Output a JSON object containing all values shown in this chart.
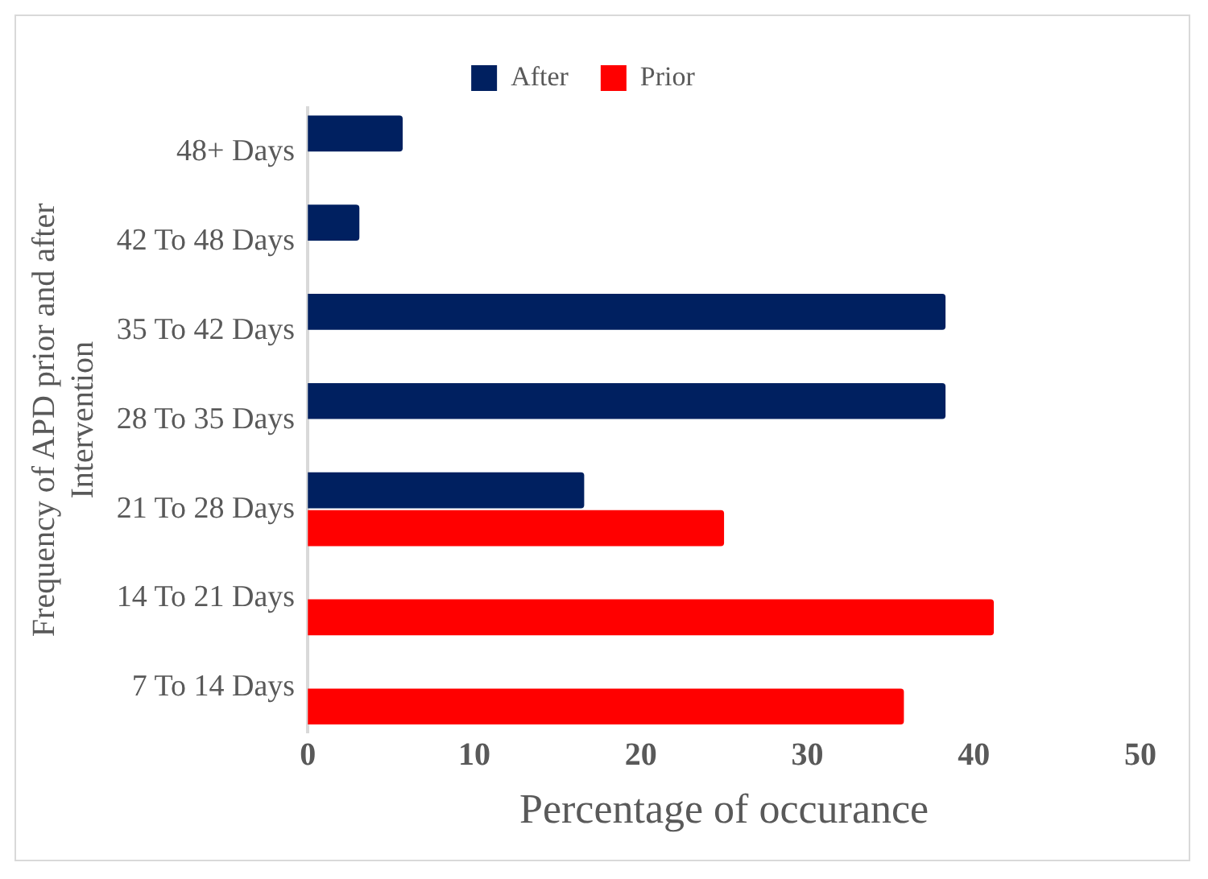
{
  "chart_data": {
    "type": "bar",
    "orientation": "horizontal",
    "xlabel": "Percentage of occurance",
    "ylabel": "Frequency of APD prior and after Intervention",
    "categories": [
      "48+ Days",
      "42 To 48 Days",
      "35 To 42 Days",
      "28 To 35 Days",
      "21 To 28 Days",
      "14 To 21 Days",
      "7 To 14 Days"
    ],
    "series": [
      {
        "name": "After",
        "color": "#002060",
        "values": [
          5.7,
          3.1,
          38.3,
          38.3,
          16.6,
          null,
          null
        ]
      },
      {
        "name": "Prior",
        "color": "#ff0000",
        "values": [
          null,
          null,
          null,
          null,
          25.0,
          41.2,
          35.8
        ]
      }
    ],
    "xlim": [
      0,
      50
    ],
    "xticks": [
      0,
      10,
      20,
      30,
      40,
      50
    ],
    "grid": false,
    "legend": "top"
  }
}
